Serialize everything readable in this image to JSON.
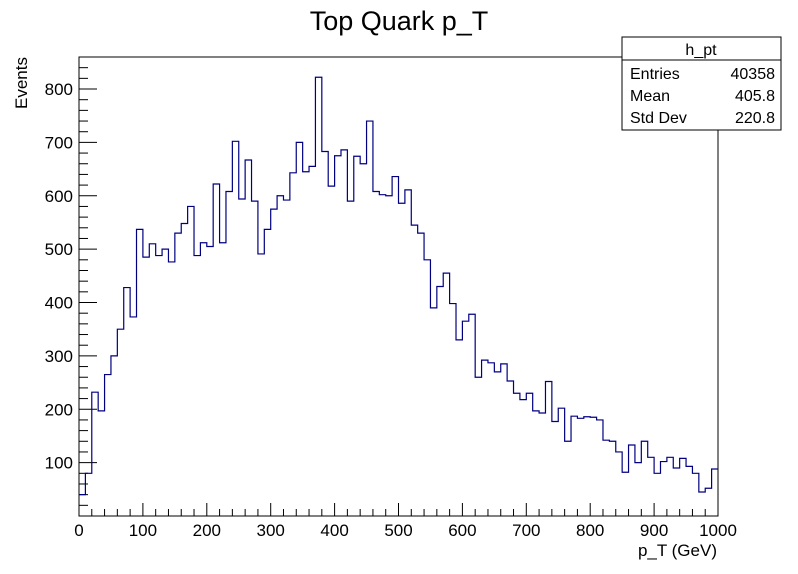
{
  "chart_data": {
    "type": "histogram",
    "title": "Top Quark p_T",
    "xlabel": "p_T (GeV)",
    "ylabel": "Events",
    "xlim": [
      0,
      1000
    ],
    "ylim": [
      0,
      860
    ],
    "bin_width": 10,
    "line_color": "#000080",
    "x_ticks": [
      "0",
      "100",
      "200",
      "300",
      "400",
      "500",
      "600",
      "700",
      "800",
      "900",
      "1000"
    ],
    "y_ticks": [
      "100",
      "200",
      "300",
      "400",
      "500",
      "600",
      "700",
      "800"
    ],
    "values": [
      40,
      80,
      232,
      197,
      265,
      300,
      350,
      428,
      373,
      537,
      485,
      510,
      488,
      500,
      476,
      530,
      548,
      580,
      488,
      512,
      505,
      622,
      512,
      608,
      702,
      594,
      667,
      590,
      491,
      537,
      575,
      600,
      592,
      643,
      700,
      645,
      655,
      822,
      683,
      618,
      675,
      686,
      590,
      674,
      660,
      740,
      608,
      602,
      600,
      636,
      586,
      611,
      545,
      530,
      480,
      390,
      430,
      455,
      398,
      330,
      365,
      378,
      260,
      292,
      287,
      270,
      285,
      253,
      230,
      218,
      230,
      197,
      193,
      252,
      177,
      202,
      140,
      187,
      183,
      186,
      185,
      180,
      142,
      140,
      120,
      82,
      133,
      100,
      140,
      110,
      80,
      102,
      110,
      90,
      108,
      93,
      80,
      45,
      52,
      88
    ],
    "legend": {
      "name": "h_pt",
      "rows": [
        {
          "label": "Entries",
          "value": "40358"
        },
        {
          "label": "Mean",
          "value": "405.8"
        },
        {
          "label": "Std Dev",
          "value": "220.8"
        }
      ]
    }
  }
}
